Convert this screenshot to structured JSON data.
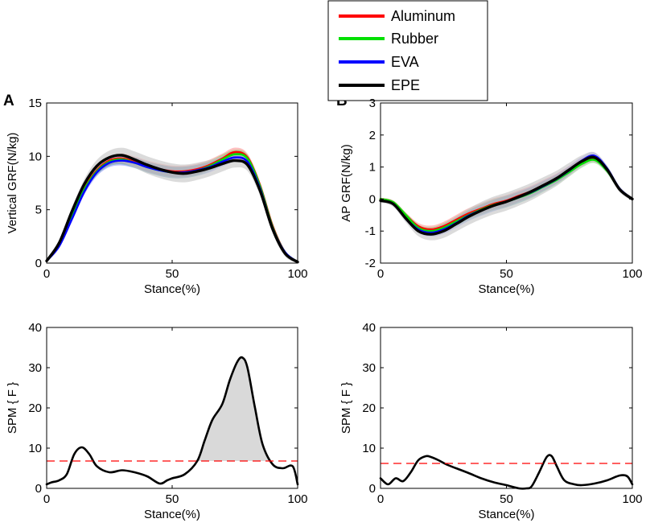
{
  "panels": {
    "A": "A",
    "B": "B"
  },
  "legend": {
    "entries": [
      {
        "name": "Aluminum",
        "color": "#ff0000"
      },
      {
        "name": "Rubber",
        "color": "#00e000"
      },
      {
        "name": "EVA",
        "color": "#0000ff"
      },
      {
        "name": "EPE",
        "color": "#000000"
      }
    ]
  },
  "colors": {
    "band_gray": "#c8c8c8",
    "threshold": "#ff0000",
    "spm_fill": "#d9d9d9"
  },
  "chart_data": [
    {
      "id": "vgrf",
      "type": "line",
      "title": "",
      "xlabel": "Stance(%)",
      "ylabel": "Vertical GRF(N/kg)",
      "xlim": [
        0,
        100
      ],
      "ylim": [
        0,
        15
      ],
      "xticks": [
        0,
        50,
        100
      ],
      "yticks": [
        0,
        5,
        10,
        15
      ],
      "bands": true,
      "series": [
        {
          "name": "Aluminum",
          "color": "#ff0000",
          "x": [
            0,
            5,
            10,
            15,
            20,
            25,
            30,
            35,
            40,
            45,
            50,
            55,
            60,
            65,
            70,
            75,
            80,
            85,
            90,
            95,
            100
          ],
          "y": [
            0.2,
            1.8,
            4.5,
            7.0,
            8.7,
            9.6,
            9.8,
            9.5,
            9.1,
            8.8,
            8.6,
            8.6,
            8.8,
            9.2,
            9.8,
            10.4,
            9.9,
            7.3,
            3.5,
            1.0,
            0.1
          ]
        },
        {
          "name": "Rubber",
          "color": "#00e000",
          "x": [
            0,
            5,
            10,
            15,
            20,
            25,
            30,
            35,
            40,
            45,
            50,
            55,
            60,
            65,
            70,
            75,
            80,
            85,
            90,
            95,
            100
          ],
          "y": [
            0.2,
            1.7,
            4.3,
            6.9,
            8.6,
            9.5,
            9.7,
            9.4,
            9.0,
            8.7,
            8.5,
            8.5,
            8.7,
            9.1,
            9.7,
            10.2,
            9.8,
            7.2,
            3.4,
            1.0,
            0.1
          ]
        },
        {
          "name": "EVA",
          "color": "#0000ff",
          "x": [
            0,
            5,
            10,
            15,
            20,
            25,
            30,
            35,
            40,
            45,
            50,
            55,
            60,
            65,
            70,
            75,
            80,
            85,
            90,
            95,
            100
          ],
          "y": [
            0.2,
            1.6,
            4.1,
            6.7,
            8.5,
            9.4,
            9.6,
            9.4,
            9.0,
            8.7,
            8.5,
            8.5,
            8.7,
            9.0,
            9.5,
            9.9,
            9.5,
            7.0,
            3.3,
            1.0,
            0.1
          ]
        },
        {
          "name": "EPE",
          "color": "#000000",
          "x": [
            0,
            5,
            10,
            15,
            20,
            25,
            30,
            35,
            40,
            45,
            50,
            55,
            60,
            65,
            70,
            75,
            80,
            85,
            90,
            95,
            100
          ],
          "y": [
            0.2,
            1.9,
            4.8,
            7.4,
            9.1,
            9.9,
            10.1,
            9.7,
            9.2,
            8.8,
            8.5,
            8.4,
            8.6,
            8.9,
            9.3,
            9.6,
            9.2,
            6.8,
            3.2,
            0.9,
            0.1
          ]
        }
      ]
    },
    {
      "id": "apgrf",
      "type": "line",
      "title": "",
      "xlabel": "Stance(%)",
      "ylabel": "AP GRF(N/kg)",
      "xlim": [
        0,
        100
      ],
      "ylim": [
        -2,
        3
      ],
      "xticks": [
        0,
        50,
        100
      ],
      "yticks": [
        -2,
        -1,
        0,
        1,
        2,
        3
      ],
      "bands": true,
      "series": [
        {
          "name": "Aluminum",
          "color": "#ff0000",
          "x": [
            0,
            5,
            10,
            15,
            20,
            25,
            30,
            35,
            40,
            45,
            50,
            55,
            60,
            65,
            70,
            75,
            80,
            85,
            90,
            95,
            100
          ],
          "y": [
            0.0,
            -0.1,
            -0.5,
            -0.85,
            -0.95,
            -0.85,
            -0.65,
            -0.45,
            -0.3,
            -0.15,
            -0.05,
            0.1,
            0.25,
            0.45,
            0.65,
            0.9,
            1.15,
            1.25,
            0.9,
            0.3,
            0.0
          ]
        },
        {
          "name": "Rubber",
          "color": "#00e000",
          "x": [
            0,
            5,
            10,
            15,
            20,
            25,
            30,
            35,
            40,
            45,
            50,
            55,
            60,
            65,
            70,
            75,
            80,
            85,
            90,
            95,
            100
          ],
          "y": [
            0.0,
            -0.1,
            -0.5,
            -0.9,
            -1.0,
            -0.9,
            -0.7,
            -0.5,
            -0.33,
            -0.18,
            -0.08,
            0.05,
            0.2,
            0.4,
            0.6,
            0.85,
            1.1,
            1.22,
            0.88,
            0.3,
            0.0
          ]
        },
        {
          "name": "EVA",
          "color": "#0000ff",
          "x": [
            0,
            5,
            10,
            15,
            20,
            25,
            30,
            35,
            40,
            45,
            50,
            55,
            60,
            65,
            70,
            75,
            80,
            85,
            90,
            95,
            100
          ],
          "y": [
            -0.05,
            -0.15,
            -0.6,
            -0.95,
            -1.05,
            -0.95,
            -0.75,
            -0.52,
            -0.35,
            -0.2,
            -0.08,
            0.06,
            0.22,
            0.42,
            0.63,
            0.9,
            1.2,
            1.35,
            0.95,
            0.32,
            0.0
          ]
        },
        {
          "name": "EPE",
          "color": "#000000",
          "x": [
            0,
            5,
            10,
            15,
            20,
            25,
            30,
            35,
            40,
            45,
            50,
            55,
            60,
            65,
            70,
            75,
            80,
            85,
            90,
            95,
            100
          ],
          "y": [
            -0.05,
            -0.15,
            -0.6,
            -1.0,
            -1.1,
            -1.0,
            -0.78,
            -0.55,
            -0.36,
            -0.2,
            -0.08,
            0.07,
            0.24,
            0.44,
            0.65,
            0.92,
            1.18,
            1.3,
            0.92,
            0.3,
            0.0
          ]
        }
      ]
    },
    {
      "id": "spm_vgrf",
      "type": "area",
      "title": "",
      "xlabel": "Stance(%)",
      "ylabel": "SPM { F }",
      "xlim": [
        0,
        100
      ],
      "ylim": [
        0,
        40
      ],
      "xticks": [
        0,
        50,
        100
      ],
      "yticks": [
        0,
        10,
        20,
        30,
        40
      ],
      "threshold": 6.8,
      "series": [
        {
          "name": "SPM{F}",
          "x": [
            0,
            2,
            5,
            8,
            11,
            14,
            17,
            20,
            25,
            30,
            35,
            40,
            45,
            48,
            50,
            55,
            60,
            63,
            66,
            70,
            73,
            76,
            78,
            80,
            83,
            86,
            90,
            94,
            98,
            100
          ],
          "y": [
            1.0,
            1.5,
            2.0,
            3.5,
            8.5,
            10.2,
            8.5,
            5.5,
            4.0,
            4.5,
            4.0,
            3.0,
            1.2,
            2.0,
            2.5,
            3.5,
            6.8,
            12.0,
            17.0,
            21.0,
            27.0,
            31.5,
            32.5,
            30.0,
            20.0,
            11.0,
            6.0,
            5.0,
            5.5,
            1.0
          ]
        }
      ]
    },
    {
      "id": "spm_apgrf",
      "type": "line",
      "title": "",
      "xlabel": "Stance(%)",
      "ylabel": "SPM { F }",
      "xlim": [
        0,
        100
      ],
      "ylim": [
        0,
        40
      ],
      "xticks": [
        0,
        50,
        100
      ],
      "yticks": [
        0,
        10,
        20,
        30,
        40
      ],
      "threshold": 6.2,
      "series": [
        {
          "name": "SPM{F}",
          "x": [
            0,
            3,
            6,
            9,
            12,
            15,
            18,
            20,
            23,
            26,
            30,
            35,
            40,
            45,
            50,
            55,
            58,
            60,
            63,
            66,
            68,
            70,
            73,
            77,
            80,
            85,
            90,
            95,
            98,
            100
          ],
          "y": [
            2.5,
            1.0,
            2.5,
            1.8,
            4.0,
            7.0,
            8.0,
            7.8,
            7.0,
            6.0,
            5.0,
            3.8,
            2.5,
            1.5,
            0.8,
            0.0,
            0.0,
            0.5,
            4.0,
            7.8,
            8.0,
            5.5,
            2.0,
            1.0,
            0.8,
            1.2,
            2.0,
            3.2,
            3.0,
            1.0
          ]
        }
      ]
    }
  ]
}
